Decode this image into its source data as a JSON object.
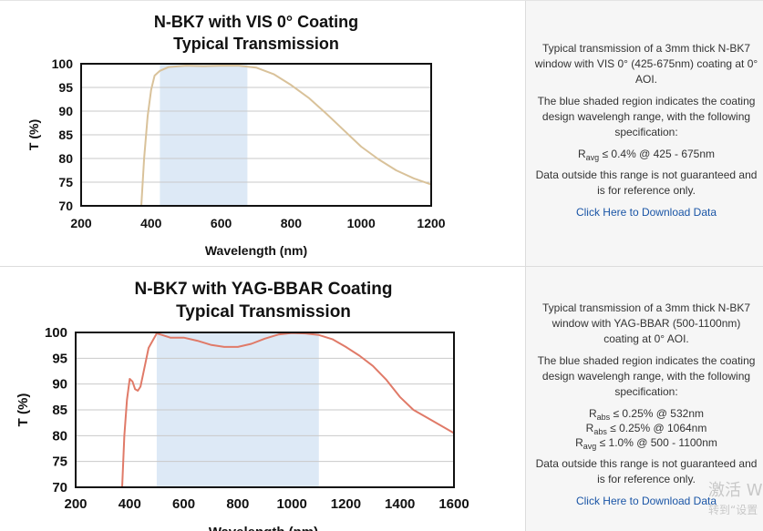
{
  "charts": [
    {
      "type": "line",
      "title": [
        "N-BK7 with VIS 0° Coating",
        "Typical Transmission"
      ],
      "xlabel": "Wavelength (nm)",
      "ylabel": "T (%)",
      "xlim": [
        200,
        1200
      ],
      "ylim": [
        70,
        100
      ],
      "xticks": [
        200,
        400,
        600,
        800,
        1000,
        1200
      ],
      "yticks": [
        70,
        75,
        80,
        85,
        90,
        95,
        100
      ],
      "shaded_region": [
        425,
        675
      ],
      "shade_color": "#dde9f6",
      "line_color": "#d9c29a",
      "series": [
        {
          "name": "VIS 0° coating",
          "x": [
            372,
            380,
            390,
            400,
            410,
            425,
            450,
            500,
            550,
            600,
            650,
            700,
            750,
            800,
            850,
            900,
            950,
            1000,
            1050,
            1100,
            1150,
            1200
          ],
          "y": [
            70,
            80,
            89,
            94.5,
            97.5,
            98.5,
            99.3,
            99.6,
            99.5,
            99.6,
            99.6,
            99.2,
            97.8,
            95.5,
            92.8,
            89.5,
            86,
            82.5,
            79.8,
            77.5,
            75.8,
            74.5
          ]
        }
      ]
    },
    {
      "type": "line",
      "title": [
        "N-BK7 with YAG-BBAR Coating",
        "Typical Transmission"
      ],
      "xlabel": "Wavelength (nm)",
      "ylabel": "T (%)",
      "xlim": [
        200,
        1600
      ],
      "ylim": [
        70,
        100
      ],
      "xticks": [
        200,
        400,
        600,
        800,
        1000,
        1200,
        1400,
        1600
      ],
      "yticks": [
        70,
        75,
        80,
        85,
        90,
        95,
        100
      ],
      "shaded_region": [
        500,
        1100
      ],
      "shade_color": "#dde9f6",
      "line_color": "#e07a68",
      "series": [
        {
          "name": "YAG-BBAR coating",
          "x": [
            372,
            380,
            390,
            400,
            410,
            420,
            430,
            440,
            450,
            470,
            500,
            520,
            550,
            600,
            650,
            700,
            750,
            800,
            850,
            900,
            950,
            1000,
            1050,
            1100,
            1150,
            1200,
            1250,
            1300,
            1350,
            1400,
            1450,
            1500,
            1550,
            1600
          ],
          "y": [
            70,
            80,
            87,
            91,
            90.5,
            89,
            88.7,
            89.5,
            92,
            97,
            99.8,
            99.5,
            99,
            99,
            98.4,
            97.6,
            97.2,
            97.2,
            97.8,
            98.8,
            99.6,
            99.9,
            99.8,
            99.5,
            98.7,
            97.2,
            95.5,
            93.5,
            90.8,
            87.5,
            85,
            83.5,
            82,
            80.5
          ]
        }
      ]
    }
  ],
  "descriptions": [
    {
      "text": "Typical transmission of a 3mm thick N-BK7 window with VIS 0° (425-675nm) coating at 0° AOI.",
      "shaded": "The blue shaded region indicates the coating design wavelengh range, with the following specification:",
      "specs": [
        {
          "sym": "R",
          "sub": "avg",
          "rest": " ≤ 0.4% @ 425 - 675nm"
        }
      ],
      "disclaimer": "Data outside this range is not guaranteed and is for reference only.",
      "link": "Click Here to Download Data"
    },
    {
      "text": "Typical transmission of a 3mm thick N-BK7 window with YAG-BBAR (500-1100nm) coating at 0° AOI.",
      "shaded": "The blue shaded region indicates the coating design wavelengh range, with the following specification:",
      "specs": [
        {
          "sym": "R",
          "sub": "abs",
          "rest": " ≤ 0.25% @ 532nm"
        },
        {
          "sym": "R",
          "sub": "abs",
          "rest": " ≤ 0.25% @ 1064nm"
        },
        {
          "sym": "R",
          "sub": "avg",
          "rest": " ≤ 1.0% @ 500 - 1100nm"
        }
      ],
      "disclaimer": "Data outside this range is not guaranteed and is for reference only.",
      "link": "Click Here to Download Data"
    }
  ],
  "watermark": {
    "line1": "激活 W",
    "line2": "转到“设置"
  }
}
